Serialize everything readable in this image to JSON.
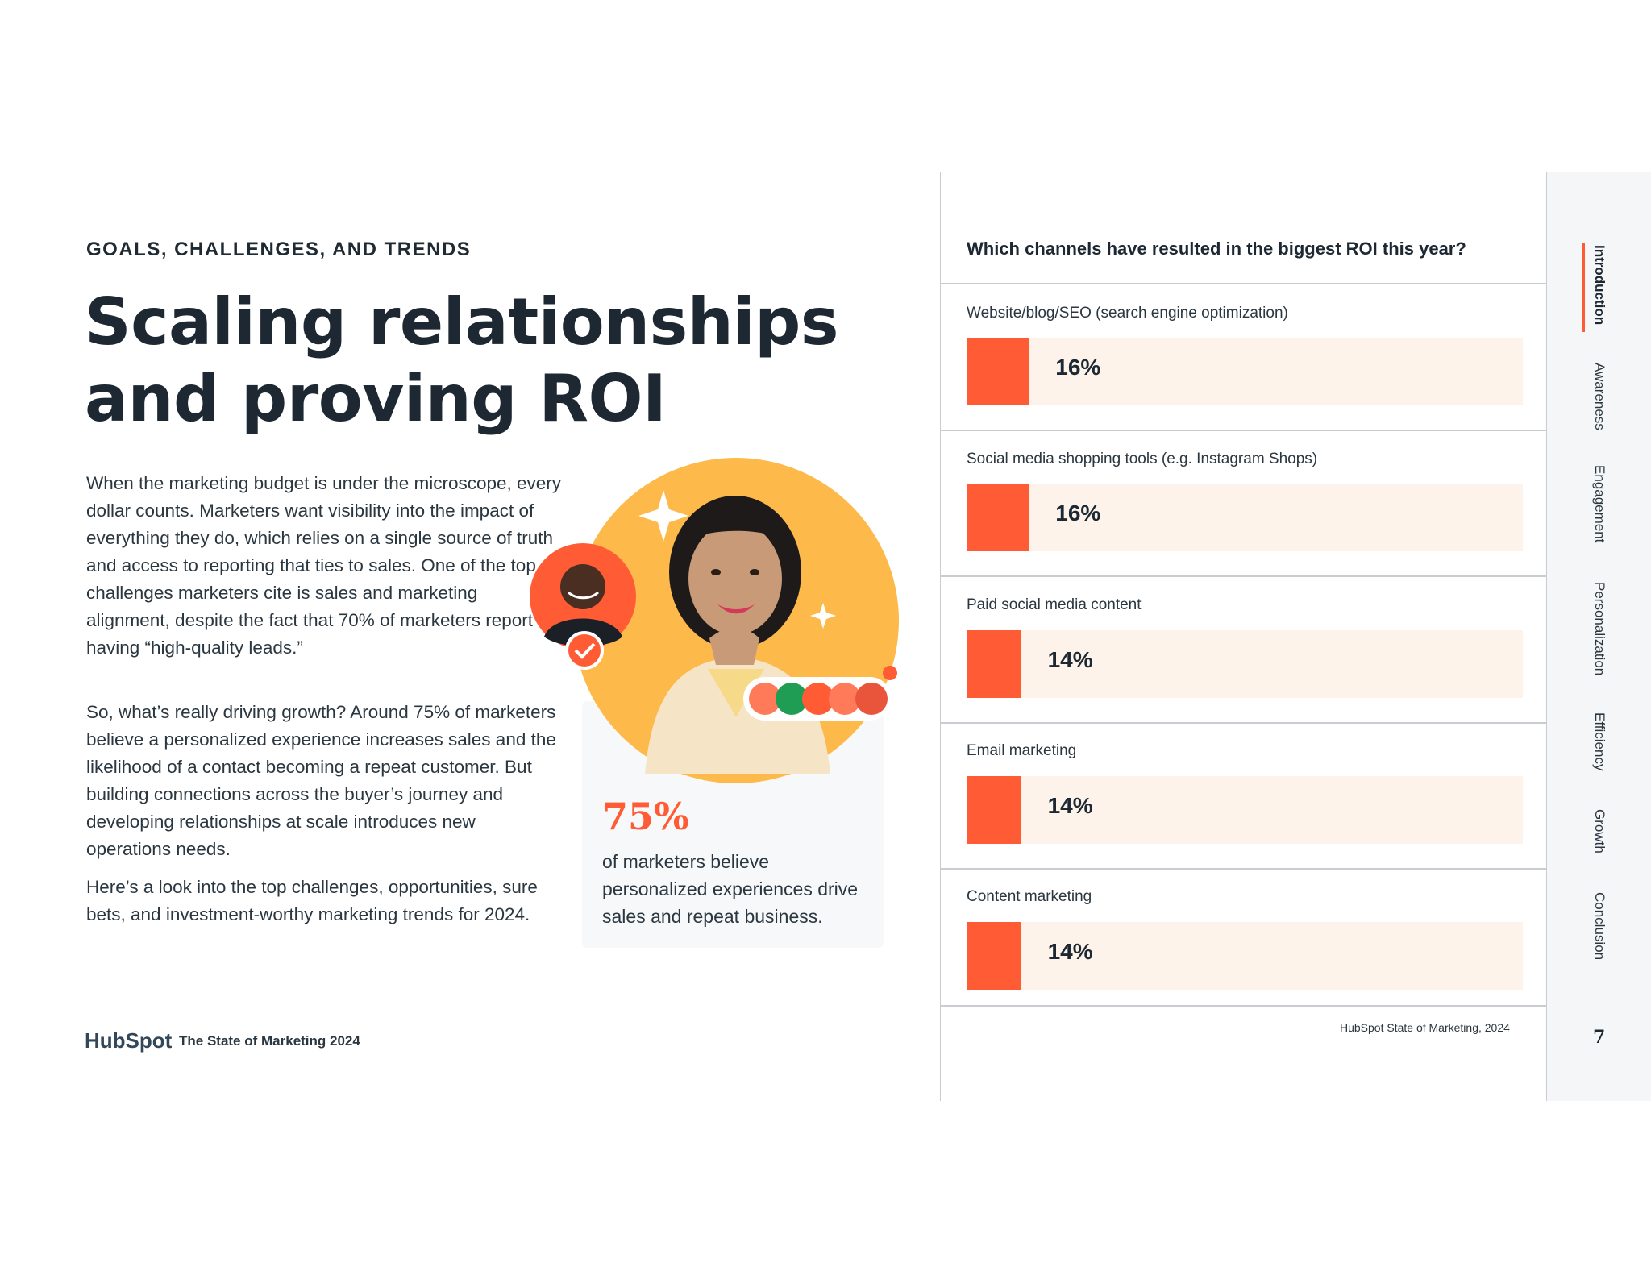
{
  "left": {
    "eyebrow": "GOALS, CHALLENGES, AND TRENDS",
    "title": "Scaling relationships and proving ROI",
    "paragraphs": [
      "When the marketing budget is under the microscope, every dollar counts. Marketers want visibility into the impact of everything they do, which relies on a single source of truth and access to reporting that ties to sales. One of the top challenges marketers cite is sales and marketing alignment, despite the fact that 70% of marketers report having “high-quality leads.”",
      "So, what’s really driving growth? Around 75% of marketers believe a personalized experience increases sales and the likelihood of a contact becoming a repeat customer. But building connections across the buyer’s journey and developing relationships at scale introduces new operations needs.",
      "Here’s a look into the top challenges, opportunities, sure bets, and investment-worthy marketing trends for 2024."
    ],
    "stat": {
      "number": "75%",
      "caption": "of marketers believe personalized experiences drive sales and repeat business."
    }
  },
  "footer": {
    "logo": "HubSpot",
    "title": "The State of Marketing 2024"
  },
  "chart_data": {
    "type": "bar",
    "orientation": "horizontal",
    "title": "Which channels have resulted in the biggest ROI this year?",
    "categories": [
      "Website/blog/SEO (search engine optimization)",
      "Social media shopping tools (e.g. Instagram Shops)",
      "Paid social media content",
      "Email marketing",
      "Content marketing"
    ],
    "values": [
      16,
      16,
      14,
      14,
      14
    ],
    "value_labels": [
      "16%",
      "16%",
      "14%",
      "14%",
      "14%"
    ],
    "xlim": [
      0,
      100
    ],
    "xlabel": "",
    "ylabel": "",
    "source": "HubSpot State of Marketing, 2024",
    "colors": {
      "fill": "#ff5c35",
      "track": "#fdf3ea"
    }
  },
  "nav": {
    "items": [
      "Introduction",
      "Awareness",
      "Engagement",
      "Personalization",
      "Efficiency",
      "Growth",
      "Conclusion"
    ],
    "active": "Introduction",
    "page_number": "7"
  },
  "colors": {
    "accent": "#ff5c35",
    "text": "#1d2833",
    "gold": "#fdb94a"
  }
}
